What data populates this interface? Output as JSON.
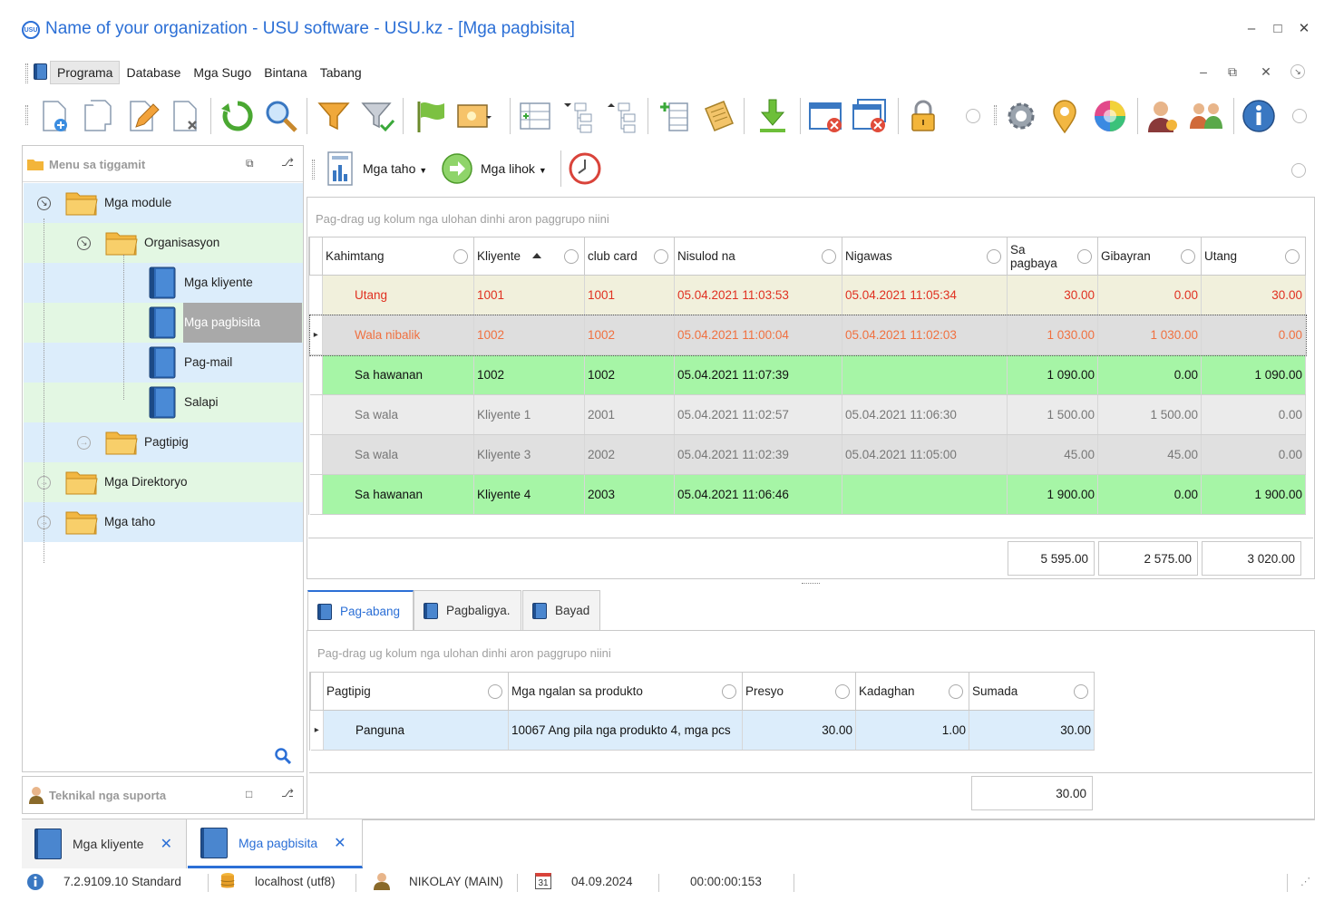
{
  "window": {
    "title": "Name of your organization - USU software - USU.kz - [Mga pagbisita]",
    "logo_text": "USU",
    "controls": [
      "minimize",
      "maximize",
      "close"
    ]
  },
  "menubar": {
    "items": [
      "Programa",
      "Database",
      "Mga Sugo",
      "Bintana",
      "Tabang"
    ],
    "active": "Programa"
  },
  "toolbar": {
    "icons": [
      "add-icon",
      "copy-icon",
      "edit-icon",
      "delete-icon",
      "refresh-icon",
      "search-icon",
      "filter-icon",
      "filter-settings-icon",
      "flag-icon",
      "image-icon",
      "columns-icon",
      "collapse-tree-icon",
      "expand-tree-icon",
      "add-column-icon",
      "notes-icon",
      "download-icon",
      "close-window-icon",
      "close-all-windows-icon",
      "lock-icon",
      "settings-icon",
      "location-icon",
      "color-wheel-icon",
      "user-icon",
      "users-icon",
      "info-icon"
    ]
  },
  "left_panel": {
    "title": "Menu sa tiggamit",
    "tree": [
      {
        "label": "Mga module",
        "type": "folder",
        "level": 0,
        "expanded": true,
        "bg": "blue"
      },
      {
        "label": "Organisasyon",
        "type": "folder",
        "level": 1,
        "expanded": true,
        "bg": "green"
      },
      {
        "label": "Mga kliyente",
        "type": "book",
        "level": 2,
        "bg": "blue"
      },
      {
        "label": "Mga pagbisita",
        "type": "book",
        "level": 2,
        "bg": "green",
        "selected": true
      },
      {
        "label": "Pag-mail",
        "type": "book",
        "level": 2,
        "bg": "blue"
      },
      {
        "label": "Salapi",
        "type": "book",
        "level": 2,
        "bg": "green"
      },
      {
        "label": "Pagtipig",
        "type": "folder",
        "level": 1,
        "expanded": false,
        "bg": "blue"
      },
      {
        "label": "Mga Direktoryo",
        "type": "folder",
        "level": 0,
        "expanded": false,
        "bg": "green"
      },
      {
        "label": "Mga taho",
        "type": "folder",
        "level": 0,
        "expanded": false,
        "bg": "blue"
      }
    ]
  },
  "tech_panel": {
    "title": "Teknikal nga suporta"
  },
  "subtoolbar": {
    "reports_label": "Mga taho",
    "actions_label": "Mga lihok"
  },
  "main_grid": {
    "group_hint": "Pag-drag ug kolum nga ulohan dinhi aron paggrupo niini",
    "columns": [
      "Kahimtang",
      "Kliyente",
      "club card",
      "Nisulod na",
      "Nigawas",
      "Sa pagbaya",
      "Gibayran",
      "Utang"
    ],
    "rows": [
      {
        "style": "r-yellow",
        "cells": [
          "Utang",
          "1001",
          "1001",
          "05.04.2021 11:03:53",
          "05.04.2021 11:05:34",
          "30.00",
          "0.00",
          "30.00"
        ]
      },
      {
        "style": "r-sel",
        "cells": [
          "Wala nibalik",
          "1002",
          "1002",
          "05.04.2021 11:00:04",
          "05.04.2021 11:02:03",
          "1 030.00",
          "1 030.00",
          "0.00"
        ]
      },
      {
        "style": "r-green",
        "cells": [
          "Sa hawanan",
          "1002",
          "1002",
          "05.04.2021 11:07:39",
          "",
          "1 090.00",
          "0.00",
          "1 090.00"
        ]
      },
      {
        "style": "r-grey",
        "cells": [
          "Sa wala",
          "Kliyente 1",
          "2001",
          "05.04.2021 11:02:57",
          "05.04.2021 11:06:30",
          "1 500.00",
          "1 500.00",
          "0.00"
        ]
      },
      {
        "style": "r-grey2",
        "cells": [
          "Sa wala",
          "Kliyente 3",
          "2002",
          "05.04.2021 11:02:39",
          "05.04.2021 11:05:00",
          "45.00",
          "45.00",
          "0.00"
        ]
      },
      {
        "style": "r-green",
        "cells": [
          "Sa hawanan",
          "Kliyente 4",
          "2003",
          "05.04.2021 11:06:46",
          "",
          "1 900.00",
          "0.00",
          "1 900.00"
        ]
      }
    ],
    "totals": {
      "pagbaya": "5 595.00",
      "gibayran": "2 575.00",
      "utang": "3 020.00"
    }
  },
  "detail_tabs": [
    "Pag-abang",
    "Pagbaligya.",
    "Bayad"
  ],
  "detail_grid": {
    "group_hint": "Pag-drag ug kolum nga ulohan dinhi aron paggrupo niini",
    "columns": [
      "Pagtipig",
      "Mga ngalan sa produkto",
      "Presyo",
      "Kadaghan",
      "Sumada"
    ],
    "rows": [
      {
        "style": "r-blue",
        "cells": [
          "Panguna",
          "10067 Ang pila nga produkto 4, mga pcs",
          "30.00",
          "1.00",
          "30.00"
        ]
      }
    ],
    "total": "30.00"
  },
  "doc_tabs": [
    {
      "label": "Mga kliyente",
      "active": false
    },
    {
      "label": "Mga pagbisita",
      "active": true
    }
  ],
  "statusbar": {
    "version": "7.2.9109.10 Standard",
    "db": "localhost (utf8)",
    "user": "NIKOLAY (MAIN)",
    "calendar_day": "31",
    "date": "04.09.2024",
    "timer": "00:00:00:153"
  },
  "colors": {
    "accent": "#2b6fd6",
    "row_green": "#a6f5a6",
    "row_yellow": "#f1f0dc",
    "text_red": "#e03020",
    "text_orange": "#f07040",
    "tree_blue": "#dcedfb",
    "tree_green": "#e3f7e3"
  }
}
